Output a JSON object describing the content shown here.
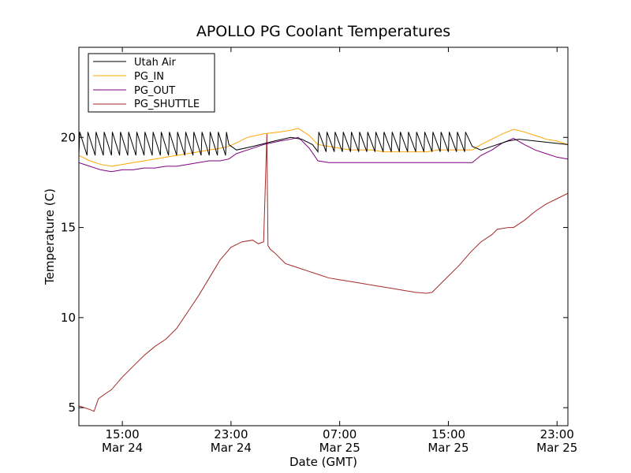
{
  "chart_data": {
    "type": "line",
    "title": "APOLLO PG Coolant Temperatures",
    "xlabel": "Date (GMT)",
    "ylabel": "Temperature (C)",
    "x_unit": "hours since Mar 24 11:00 GMT",
    "xlim": [
      0,
      45
    ],
    "ylim": [
      4,
      25
    ],
    "y_ticks": [
      5,
      10,
      15,
      20
    ],
    "x_ticks": [
      {
        "x": 4,
        "time": "15:00",
        "date": "Mar 24"
      },
      {
        "x": 14,
        "time": "23:00",
        "date": "Mar 24"
      },
      {
        "x": 24,
        "time": "07:00",
        "date": "Mar 25"
      },
      {
        "x": 34,
        "time": "15:00",
        "date": "Mar 25"
      },
      {
        "x": 44,
        "time": "23:00",
        "date": "Mar 25"
      }
    ],
    "legend_position": "upper-left",
    "series": [
      {
        "name": "Utah Air",
        "color": "#000000",
        "sawtooth": [
          {
            "x_start": 0.0,
            "x_end": 13.8,
            "high": 20.3,
            "low": 19.0,
            "period": 0.75
          },
          {
            "x_start": 22.0,
            "x_end": 36.2,
            "high": 20.3,
            "low": 19.2,
            "period": 0.75
          }
        ],
        "points": [
          [
            13.8,
            19.6
          ],
          [
            14.5,
            19.3
          ],
          [
            16,
            19.5
          ],
          [
            18,
            19.8
          ],
          [
            19.5,
            20.0
          ],
          [
            20.5,
            19.9
          ],
          [
            21.5,
            19.6
          ],
          [
            22.0,
            19.4
          ],
          [
            36.2,
            19.5
          ],
          [
            37,
            19.3
          ],
          [
            38,
            19.5
          ],
          [
            39.5,
            19.8
          ],
          [
            40.5,
            19.9
          ],
          [
            42,
            19.8
          ],
          [
            45,
            19.6
          ]
        ]
      },
      {
        "name": "PG_IN",
        "color": "#ffa500",
        "points": [
          [
            0,
            19.0
          ],
          [
            1,
            18.7
          ],
          [
            2,
            18.5
          ],
          [
            3,
            18.4
          ],
          [
            4,
            18.5
          ],
          [
            5,
            18.6
          ],
          [
            6,
            18.7
          ],
          [
            7,
            18.8
          ],
          [
            8,
            18.9
          ],
          [
            9,
            19.0
          ],
          [
            10,
            19.1
          ],
          [
            11,
            19.2
          ],
          [
            12,
            19.3
          ],
          [
            13,
            19.4
          ],
          [
            13.8,
            19.5
          ],
          [
            14.5,
            19.7
          ],
          [
            15.5,
            20.0
          ],
          [
            17,
            20.2
          ],
          [
            18.5,
            20.3
          ],
          [
            19.5,
            20.4
          ],
          [
            20.2,
            20.5
          ],
          [
            21.2,
            20.1
          ],
          [
            22,
            19.6
          ],
          [
            23,
            19.5
          ],
          [
            24,
            19.4
          ],
          [
            25,
            19.3
          ],
          [
            26,
            19.3
          ],
          [
            27,
            19.3
          ],
          [
            28,
            19.2
          ],
          [
            29,
            19.2
          ],
          [
            30,
            19.2
          ],
          [
            31,
            19.2
          ],
          [
            32,
            19.2
          ],
          [
            33,
            19.3
          ],
          [
            34,
            19.3
          ],
          [
            35,
            19.3
          ],
          [
            36.2,
            19.3
          ],
          [
            37,
            19.6
          ],
          [
            38,
            19.9
          ],
          [
            39,
            20.2
          ],
          [
            40,
            20.45
          ],
          [
            41,
            20.3
          ],
          [
            42,
            20.1
          ],
          [
            43,
            19.9
          ],
          [
            44,
            19.8
          ],
          [
            45,
            19.6
          ]
        ]
      },
      {
        "name": "PG_OUT",
        "color": "#800080",
        "points": [
          [
            0,
            18.6
          ],
          [
            1,
            18.4
          ],
          [
            2,
            18.2
          ],
          [
            3,
            18.1
          ],
          [
            4,
            18.2
          ],
          [
            5,
            18.2
          ],
          [
            6,
            18.3
          ],
          [
            7,
            18.3
          ],
          [
            8,
            18.4
          ],
          [
            9,
            18.4
          ],
          [
            10,
            18.5
          ],
          [
            11,
            18.6
          ],
          [
            12,
            18.7
          ],
          [
            13,
            18.7
          ],
          [
            13.8,
            18.8
          ],
          [
            14.5,
            19.1
          ],
          [
            15.5,
            19.3
          ],
          [
            17,
            19.6
          ],
          [
            18.5,
            19.8
          ],
          [
            19.5,
            19.9
          ],
          [
            20.2,
            20.0
          ],
          [
            21.2,
            19.4
          ],
          [
            22,
            18.7
          ],
          [
            23,
            18.6
          ],
          [
            24,
            18.6
          ],
          [
            25,
            18.6
          ],
          [
            26,
            18.6
          ],
          [
            27,
            18.6
          ],
          [
            28,
            18.6
          ],
          [
            29,
            18.6
          ],
          [
            30,
            18.6
          ],
          [
            31,
            18.6
          ],
          [
            32,
            18.6
          ],
          [
            33,
            18.6
          ],
          [
            34,
            18.6
          ],
          [
            35,
            18.6
          ],
          [
            36.2,
            18.6
          ],
          [
            37,
            19.0
          ],
          [
            38,
            19.3
          ],
          [
            39,
            19.7
          ],
          [
            40,
            19.95
          ],
          [
            41,
            19.6
          ],
          [
            42,
            19.3
          ],
          [
            43,
            19.1
          ],
          [
            44,
            18.9
          ],
          [
            45,
            18.8
          ]
        ]
      },
      {
        "name": "PG_SHUTTLE",
        "color": "#a52a2a",
        "points": [
          [
            0,
            5.1
          ],
          [
            0.5,
            5.0
          ],
          [
            1,
            4.9
          ],
          [
            1.4,
            4.8
          ],
          [
            1.8,
            5.5
          ],
          [
            2.5,
            5.8
          ],
          [
            3,
            6.0
          ],
          [
            4,
            6.7
          ],
          [
            5,
            7.3
          ],
          [
            6,
            7.9
          ],
          [
            7,
            8.4
          ],
          [
            8,
            8.8
          ],
          [
            9,
            9.4
          ],
          [
            10,
            10.3
          ],
          [
            11,
            11.2
          ],
          [
            12,
            12.2
          ],
          [
            13,
            13.2
          ],
          [
            14,
            13.9
          ],
          [
            15,
            14.2
          ],
          [
            16,
            14.3
          ],
          [
            16.5,
            14.1
          ],
          [
            17,
            14.2
          ],
          [
            17.3,
            20.2
          ],
          [
            17.4,
            14.0
          ],
          [
            17.6,
            13.8
          ],
          [
            18,
            13.6
          ],
          [
            18.5,
            13.3
          ],
          [
            19,
            13.0
          ],
          [
            20,
            12.8
          ],
          [
            21,
            12.6
          ],
          [
            22,
            12.4
          ],
          [
            23,
            12.2
          ],
          [
            24,
            12.1
          ],
          [
            25,
            12.0
          ],
          [
            26,
            11.9
          ],
          [
            27,
            11.8
          ],
          [
            28,
            11.7
          ],
          [
            29,
            11.6
          ],
          [
            30,
            11.5
          ],
          [
            31,
            11.4
          ],
          [
            32,
            11.35
          ],
          [
            32.5,
            11.4
          ],
          [
            33,
            11.7
          ],
          [
            34,
            12.3
          ],
          [
            35,
            12.9
          ],
          [
            36,
            13.6
          ],
          [
            37,
            14.2
          ],
          [
            38,
            14.6
          ],
          [
            38.5,
            14.9
          ],
          [
            39.5,
            15.0
          ],
          [
            40,
            15.0
          ],
          [
            41,
            15.4
          ],
          [
            42,
            15.9
          ],
          [
            43,
            16.3
          ],
          [
            44,
            16.6
          ],
          [
            45,
            16.9
          ]
        ]
      }
    ]
  }
}
